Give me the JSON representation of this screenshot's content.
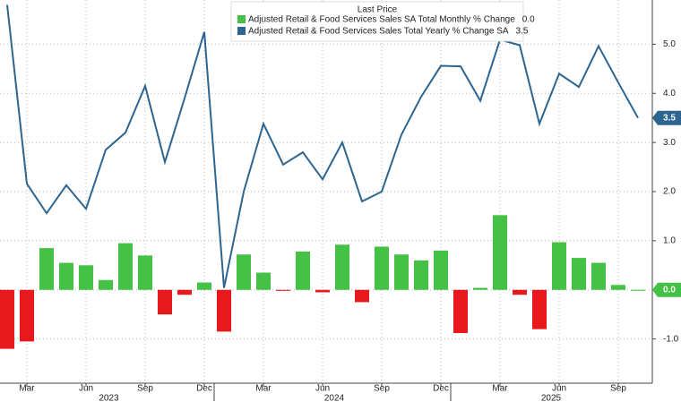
{
  "chart_data": {
    "type": "bar-line",
    "legend_title": "Last Price",
    "categories": [
      null,
      "Mar",
      null,
      null,
      "Jun",
      null,
      null,
      "Sep",
      null,
      null,
      "Dec",
      null,
      null,
      "Mar",
      null,
      null,
      "Jun",
      null,
      null,
      "Sep",
      null,
      null,
      "Dec",
      null,
      null,
      "Mar",
      null,
      null,
      "Jun",
      null,
      null,
      "Sep",
      null
    ],
    "x_groups": [
      {
        "label": "2023",
        "span": 11
      },
      {
        "label": "2024",
        "span": 12
      },
      {
        "label": "2025",
        "span": 10
      }
    ],
    "series": [
      {
        "name": "Adjusted Retail & Food Services Sales SA Total Monthly % Change",
        "type": "bar",
        "last_value_label": "0.0",
        "color": "#45c245",
        "negative_color": "#e8191c",
        "values": [
          -1.2,
          -1.05,
          0.85,
          0.55,
          0.5,
          0.2,
          0.95,
          0.7,
          -0.5,
          -0.1,
          0.15,
          -0.85,
          0.72,
          0.35,
          -0.02,
          0.78,
          -0.05,
          0.92,
          -0.25,
          0.88,
          0.72,
          0.6,
          0.8,
          -0.88,
          0.04,
          1.52,
          -0.1,
          -0.8,
          0.97,
          0.65,
          0.55,
          0.1,
          0.0
        ]
      },
      {
        "name": "Adjusted Retail & Food Services Sales Total Yearly % Change SA",
        "type": "line",
        "last_value_label": "3.5",
        "color": "#2d6591",
        "values": [
          5.8,
          2.16,
          1.56,
          2.13,
          1.65,
          2.85,
          3.2,
          4.15,
          2.6,
          3.9,
          5.25,
          0.04,
          2.0,
          3.38,
          2.55,
          2.8,
          2.25,
          3.0,
          1.8,
          2.0,
          3.16,
          3.93,
          4.56,
          4.55,
          3.85,
          5.09,
          4.98,
          3.38,
          4.4,
          4.13,
          4.96,
          4.22,
          3.5
        ]
      }
    ],
    "ylim": [
      -1.9,
      5.9
    ],
    "yticks": [
      {
        "value": -1,
        "label": "-1.0"
      },
      {
        "value": 0,
        "label": "0.0"
      },
      {
        "value": 1,
        "label": "1.0"
      },
      {
        "value": 2,
        "label": "2.0"
      },
      {
        "value": 3,
        "label": "3.0"
      },
      {
        "value": 4,
        "label": "4.0"
      },
      {
        "value": 5,
        "label": "5.0"
      }
    ],
    "grid": true
  }
}
